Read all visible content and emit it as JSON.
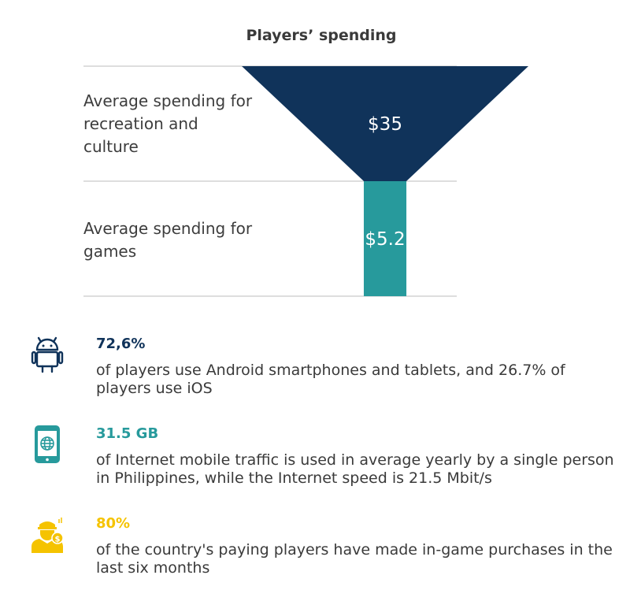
{
  "chart_data": {
    "type": "bar",
    "title": "Players’ spending",
    "categories": [
      "Average spending for recreation and culture",
      "Average spending for games"
    ],
    "values": [
      35,
      5.2
    ],
    "value_labels": [
      "$35",
      "$5.2"
    ],
    "colors": [
      "#10335a",
      "#279a9c"
    ]
  },
  "stats": [
    {
      "icon": "android-icon",
      "value": "72,6%",
      "desc": "of players use Android smartphones and tablets, and 26.7% of players use iOS",
      "color": "#10335a"
    },
    {
      "icon": "mobile-globe-icon",
      "value": "31.5 GB",
      "desc": "of Internet mobile traffic is used in average yearly by a single person in Philippines, while the Internet speed is 21.5 Mbit/s",
      "color": "#279a9c"
    },
    {
      "icon": "player-money-icon",
      "value": "80%",
      "desc": "of the country's paying players have made in-game purchases in the last six months",
      "color": "#f5c300"
    }
  ]
}
